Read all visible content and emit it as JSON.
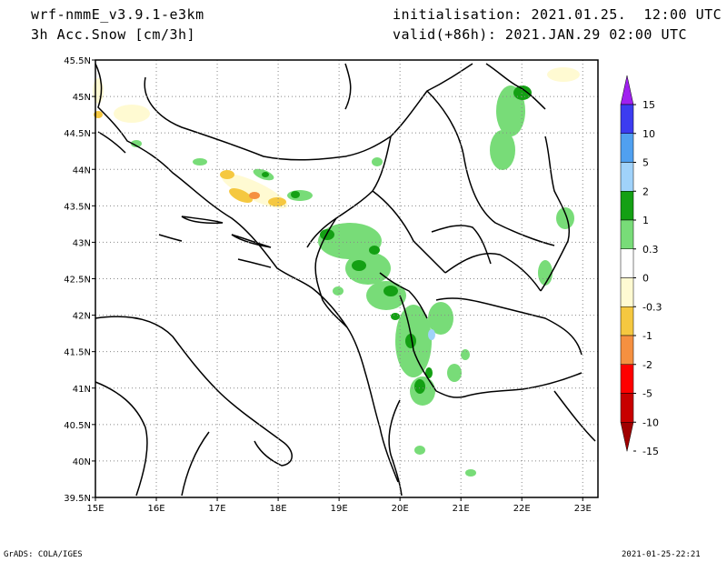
{
  "header": {
    "model": "wrf-nmmE_v3.9.1-e3km",
    "field": "3h Acc.Snow [cm/3h]",
    "initialisation": "initialisation: 2021.01.25.  12:00 UTC",
    "valid": "valid(+86h): 2021.JAN.29 02:00 UTC"
  },
  "map": {
    "lon_range": [
      15,
      23.25
    ],
    "lat_range": [
      39.5,
      45.5
    ],
    "lon_ticks": [
      "15E",
      "16E",
      "17E",
      "18E",
      "19E",
      "20E",
      "21E",
      "22E",
      "23E"
    ],
    "lat_ticks": [
      "45.5N",
      "45N",
      "44.5N",
      "44N",
      "43.5N",
      "43N",
      "42.5N",
      "42N",
      "41.5N",
      "41N",
      "40.5N",
      "40N",
      "39.5N"
    ],
    "grid": "dotted"
  },
  "colorbar": {
    "labels": [
      "15",
      "10",
      "5",
      "2",
      "1",
      "0.3",
      "0",
      "-0.3",
      "-1",
      "-2",
      "-5",
      "-10",
      "-15"
    ],
    "colors": [
      "#a020f0",
      "#3c3cf0",
      "#50a0f0",
      "#a0d2fa",
      "#14a014",
      "#78dc78",
      "#ffffff",
      "#fffad2",
      "#f5c840",
      "#f59040",
      "#ff0000",
      "#c80000",
      "#a00000"
    ]
  },
  "footer": {
    "left": "GrADS: COLA/IGES",
    "right": "2021-01-25-22:21"
  }
}
